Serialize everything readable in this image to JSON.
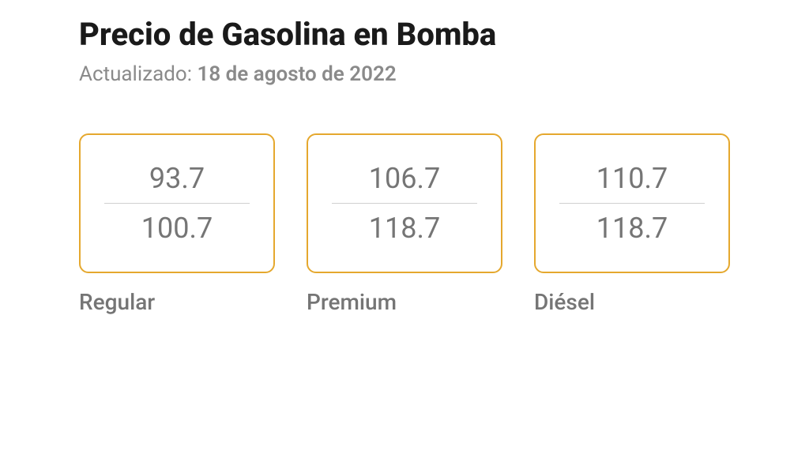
{
  "header": {
    "title": "Precio de Gasolina en Bomba",
    "updated_prefix": "Actualizado: ",
    "updated_date": "18 de agosto de 2022"
  },
  "fuel_cards": {
    "type": "infographic",
    "border_color": "#e5a82e",
    "border_radius": 12,
    "text_color": "#757575",
    "divider_color": "#d0d0d0",
    "price_fontsize": 36,
    "label_fontsize": 28,
    "items": [
      {
        "label": "Regular",
        "price_low": "93.7",
        "price_high": "100.7"
      },
      {
        "label": "Premium",
        "price_low": "106.7",
        "price_high": "118.7"
      },
      {
        "label": "Diésel",
        "price_low": "110.7",
        "price_high": "118.7"
      }
    ]
  }
}
